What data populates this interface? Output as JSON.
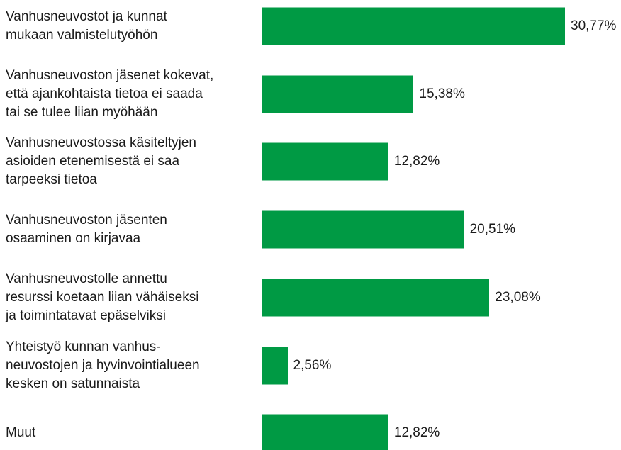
{
  "chart_data": {
    "type": "bar",
    "orientation": "horizontal",
    "color": "#009a44",
    "categories": [
      "Vanhusneuvostot ja kunnat\nmukaan valmistelutyöhön",
      "Vanhusneuvoston jäsenet kokevat,\nettä ajankohtaista tietoa ei saada\ntai se tulee liian myöhään",
      "Vanhusneuvostossa käsiteltyjen\nasioiden etenemisestä ei saa\ntarpeeksi tietoa",
      "Vanhusneuvoston jäsenten\nosaaminen on kirjavaa",
      "Vanhusneuvostolle annettu\nresurssi koetaan liian vähäiseksi\nja toimintatavat epäselviksi",
      "Yhteistyö kunnan vanhus-\nneuvostojen ja hyvinvointialueen\nkesken on satunnaista",
      "Muut"
    ],
    "values": [
      30.77,
      15.38,
      12.82,
      20.51,
      23.08,
      2.56,
      12.82
    ],
    "value_labels": [
      "30,77%",
      "15,38%",
      "12,82%",
      "20,51%",
      "23,08%",
      "2,56%",
      "12,82%"
    ]
  }
}
